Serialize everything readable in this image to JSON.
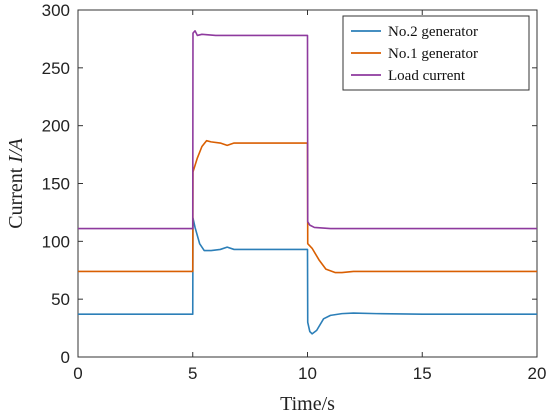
{
  "chart_data": {
    "type": "line",
    "xlabel": "Time/s",
    "ylabel_prefix": "Current ",
    "ylabel_var": "I/A",
    "xlim": [
      0,
      20
    ],
    "ylim": [
      0,
      300
    ],
    "xticks": [
      0,
      5,
      10,
      15,
      20
    ],
    "yticks": [
      0,
      50,
      100,
      150,
      200,
      250,
      300
    ],
    "grid": false,
    "legend_position": "top-right",
    "series": [
      {
        "name": "No.2 generator",
        "color": "#2c7fb8",
        "points": [
          [
            0,
            37
          ],
          [
            5,
            37
          ],
          [
            5.01,
            120
          ],
          [
            5.1,
            112
          ],
          [
            5.3,
            98
          ],
          [
            5.5,
            92
          ],
          [
            5.8,
            92
          ],
          [
            6.2,
            93
          ],
          [
            6.5,
            95
          ],
          [
            6.8,
            93
          ],
          [
            7.5,
            93
          ],
          [
            10,
            93
          ],
          [
            10.01,
            30
          ],
          [
            10.1,
            22
          ],
          [
            10.2,
            20
          ],
          [
            10.4,
            23
          ],
          [
            10.7,
            33
          ],
          [
            11,
            36
          ],
          [
            11.5,
            37.5
          ],
          [
            12,
            38
          ],
          [
            13,
            37.5
          ],
          [
            15,
            37
          ],
          [
            20,
            37
          ]
        ]
      },
      {
        "name": "No.1 generator",
        "color": "#d95f02",
        "points": [
          [
            0,
            74
          ],
          [
            5,
            74
          ],
          [
            5.01,
            160
          ],
          [
            5.2,
            172
          ],
          [
            5.4,
            182
          ],
          [
            5.6,
            187
          ],
          [
            5.8,
            186
          ],
          [
            6.2,
            185
          ],
          [
            6.5,
            183
          ],
          [
            6.8,
            185
          ],
          [
            7.5,
            185
          ],
          [
            10,
            185
          ],
          [
            10.01,
            98
          ],
          [
            10.2,
            94
          ],
          [
            10.5,
            84
          ],
          [
            10.8,
            76
          ],
          [
            11.2,
            73
          ],
          [
            11.5,
            73
          ],
          [
            12,
            74
          ],
          [
            15,
            74
          ],
          [
            20,
            74
          ]
        ]
      },
      {
        "name": "Load current",
        "color": "#8e3a9e",
        "points": [
          [
            0,
            111
          ],
          [
            5,
            111
          ],
          [
            5.01,
            280
          ],
          [
            5.1,
            282
          ],
          [
            5.2,
            278
          ],
          [
            5.4,
            279
          ],
          [
            6,
            278
          ],
          [
            10,
            278
          ],
          [
            10.01,
            117
          ],
          [
            10.1,
            114
          ],
          [
            10.3,
            112
          ],
          [
            11,
            111
          ],
          [
            20,
            111
          ]
        ]
      }
    ]
  }
}
